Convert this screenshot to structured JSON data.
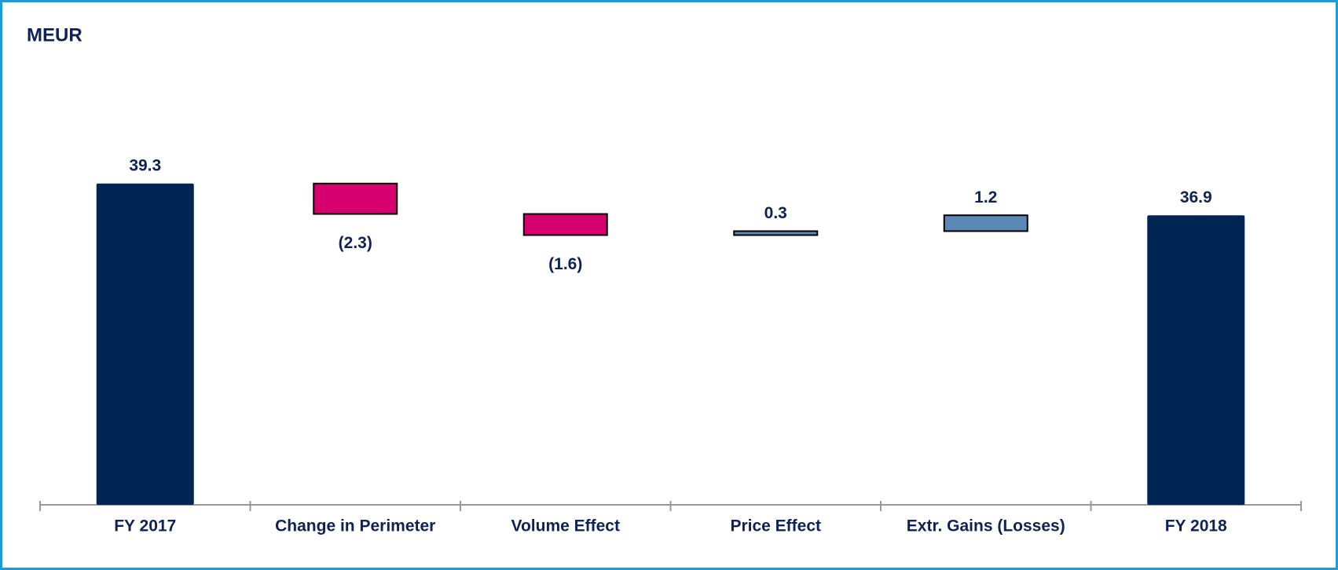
{
  "chart_data": {
    "type": "waterfall",
    "title": "MEUR",
    "categories": [
      "FY 2017",
      "Change in Perimeter",
      "Volume Effect",
      "Price Effect",
      "Extr. Gains (Losses)",
      "FY 2018"
    ],
    "values": [
      39.3,
      -2.3,
      -1.6,
      0.3,
      1.2,
      36.9
    ],
    "value_labels": [
      "39.3",
      "(2.3)",
      "(1.6)",
      "0.3",
      "1.2",
      "36.9"
    ],
    "color": "#002454",
    "increase_color": "#5b88b5",
    "decrease_color": "#d6006f",
    "ylim": [
      15,
      40
    ]
  }
}
